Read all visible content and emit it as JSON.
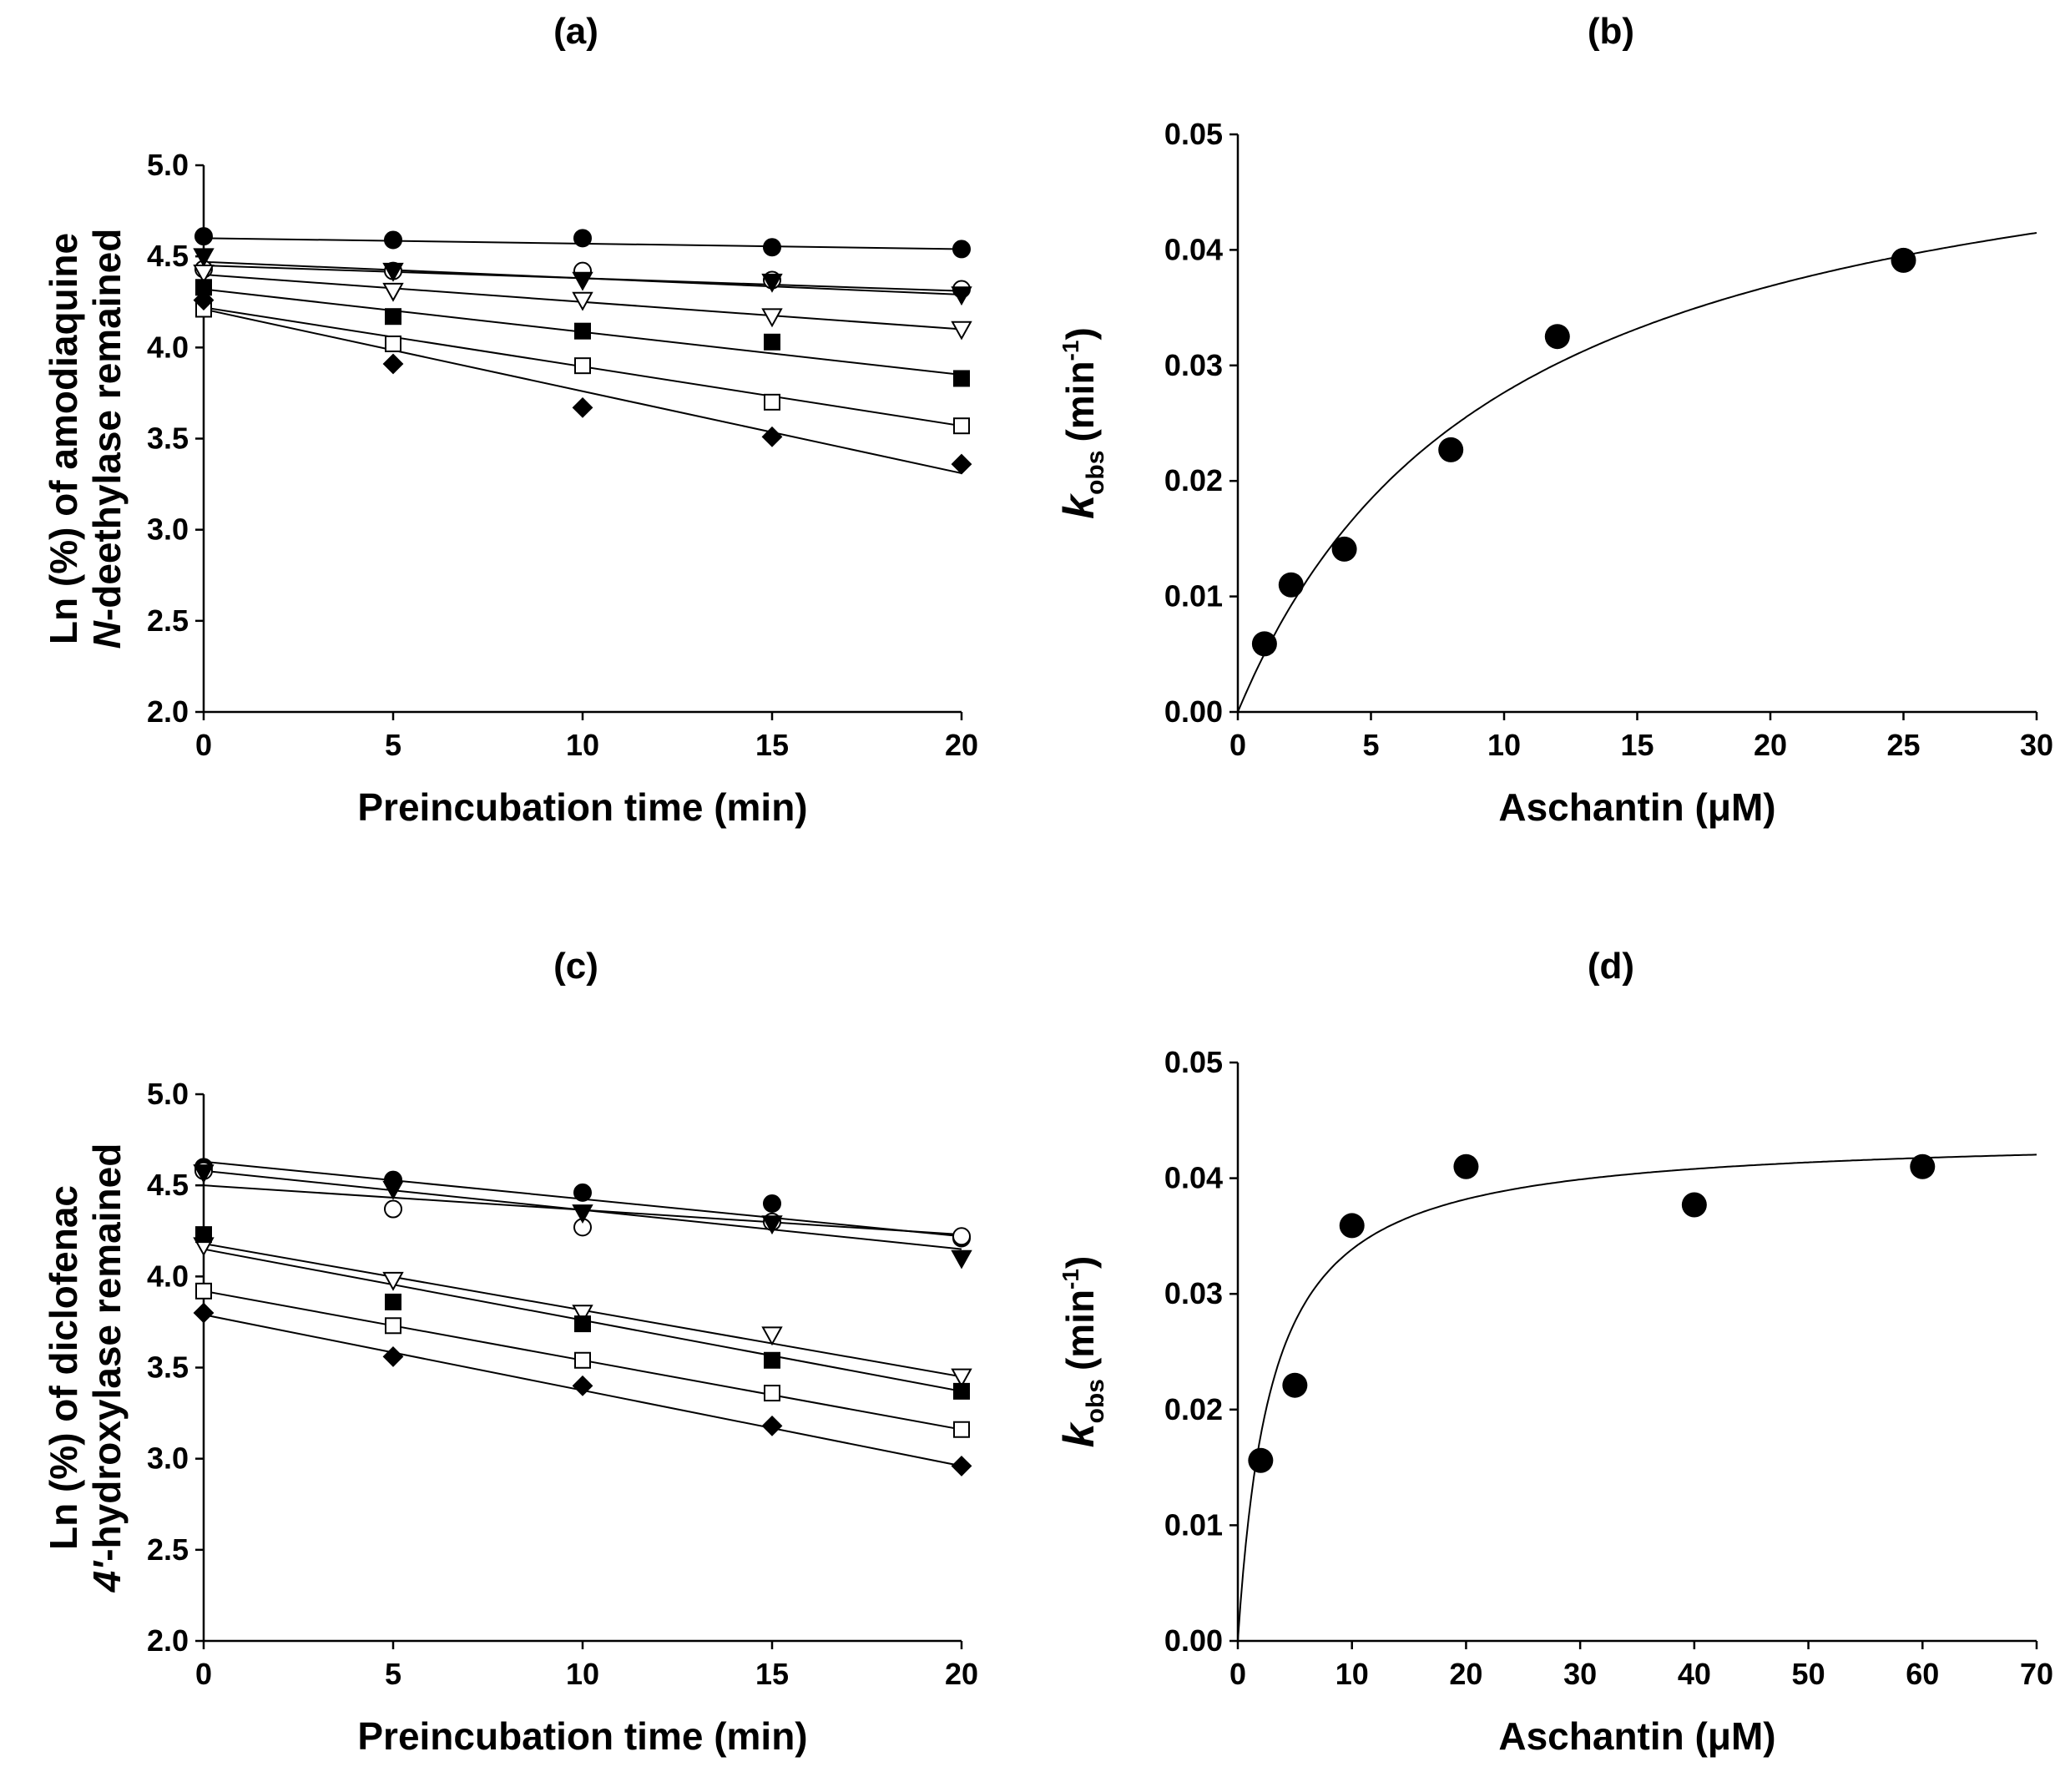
{
  "chart_data": [
    {
      "panel": "(a)",
      "type": "scatter",
      "title": "(a)",
      "xlabel": "Preincubation time (min)",
      "ylabel_lines": [
        "Ln (%) of amodiaquine",
        "N-deethylase remained"
      ],
      "xlim": [
        0,
        20
      ],
      "ylim": [
        2.0,
        5.0
      ],
      "xticks": [
        0,
        5,
        10,
        15,
        20
      ],
      "yticks": [
        2.0,
        2.5,
        3.0,
        3.5,
        4.0,
        4.5,
        5.0
      ],
      "ytick_labels": [
        "2.0",
        "2.5",
        "3.0",
        "3.5",
        "4.0",
        "4.5",
        "5.0"
      ],
      "grid": false,
      "x": [
        0,
        5,
        10,
        15,
        20
      ],
      "series": [
        {
          "marker": "filled-circle",
          "values": [
            4.61,
            4.59,
            4.6,
            4.55,
            4.54
          ],
          "fit": [
            4.6,
            4.54
          ]
        },
        {
          "marker": "open-circle",
          "values": [
            4.43,
            4.42,
            4.42,
            4.37,
            4.32
          ],
          "fit": [
            4.45,
            4.31
          ]
        },
        {
          "marker": "filled-triangle-down",
          "values": [
            4.5,
            4.42,
            4.37,
            4.36,
            4.29
          ],
          "fit": [
            4.47,
            4.29
          ]
        },
        {
          "marker": "open-triangle-down",
          "values": [
            4.41,
            4.31,
            4.26,
            4.17,
            4.1
          ],
          "fit": [
            4.4,
            4.1
          ]
        },
        {
          "marker": "filled-square",
          "values": [
            4.33,
            4.17,
            4.09,
            4.03,
            3.83
          ],
          "fit": [
            4.32,
            3.85
          ]
        },
        {
          "marker": "open-square",
          "values": [
            4.21,
            4.02,
            3.9,
            3.7,
            3.57
          ],
          "fit": [
            4.22,
            3.57
          ]
        },
        {
          "marker": "filled-diamond",
          "values": [
            4.26,
            3.91,
            3.67,
            3.51,
            3.36
          ],
          "fit": [
            4.21,
            3.31
          ]
        }
      ]
    },
    {
      "panel": "(b)",
      "type": "scatter",
      "title": "(b)",
      "xlabel": "Aschantin (μM)",
      "ylabel": "kobs (min-1)",
      "ylabel_main": "k",
      "ylabel_sub": "obs",
      "ylabel_unit": "(min",
      "ylabel_sup": "-1",
      "ylabel_close": ")",
      "xlim": [
        0,
        30
      ],
      "ylim": [
        0.0,
        0.05
      ],
      "xticks": [
        0,
        5,
        10,
        15,
        20,
        25,
        30
      ],
      "yticks": [
        0.0,
        0.01,
        0.02,
        0.03,
        0.04,
        0.05
      ],
      "ytick_labels": [
        "0.00",
        "0.01",
        "0.02",
        "0.03",
        "0.04",
        "0.05"
      ],
      "grid": false,
      "points": {
        "x": [
          1,
          2,
          4,
          8,
          12,
          25
        ],
        "y": [
          0.0059,
          0.011,
          0.0141,
          0.0227,
          0.0325,
          0.0391
        ]
      },
      "fit_curve": {
        "model": "kinact*I/(KI+I)",
        "kinact": 0.0553,
        "KI": 10.0
      }
    },
    {
      "panel": "(c)",
      "type": "scatter",
      "title": "(c)",
      "xlabel": "Preincubation time (min)",
      "ylabel_lines": [
        "Ln (%) of diclofenac",
        "4'-hydroxylase remained"
      ],
      "xlim": [
        0,
        20
      ],
      "ylim": [
        2.0,
        5.0
      ],
      "xticks": [
        0,
        5,
        10,
        15,
        20
      ],
      "yticks": [
        2.0,
        2.5,
        3.0,
        3.5,
        4.0,
        4.5,
        5.0
      ],
      "ytick_labels": [
        "2.0",
        "2.5",
        "3.0",
        "3.5",
        "4.0",
        "4.5",
        "5.0"
      ],
      "grid": false,
      "x": [
        0,
        5,
        10,
        15,
        20
      ],
      "series": [
        {
          "marker": "filled-circle",
          "values": [
            4.6,
            4.53,
            4.46,
            4.4,
            4.21
          ],
          "fit": [
            4.63,
            4.22
          ]
        },
        {
          "marker": "open-circle",
          "values": [
            4.58,
            4.37,
            4.27,
            4.3,
            4.22
          ],
          "fit": [
            4.5,
            4.23
          ]
        },
        {
          "marker": "filled-triangle-down",
          "values": [
            4.57,
            4.48,
            4.35,
            4.29,
            4.1
          ],
          "fit": [
            4.58,
            4.15
          ]
        },
        {
          "marker": "open-triangle-down",
          "values": [
            4.17,
            3.98,
            3.8,
            3.68,
            3.45
          ],
          "fit": [
            4.18,
            3.45
          ]
        },
        {
          "marker": "filled-square",
          "values": [
            4.23,
            3.86,
            3.74,
            3.54,
            3.37
          ],
          "fit": [
            4.15,
            3.37
          ]
        },
        {
          "marker": "open-square",
          "values": [
            3.92,
            3.73,
            3.54,
            3.36,
            3.16
          ],
          "fit": [
            3.92,
            3.16
          ]
        },
        {
          "marker": "filled-diamond",
          "values": [
            3.8,
            3.56,
            3.4,
            3.18,
            2.96
          ],
          "fit": [
            3.79,
            2.96
          ]
        }
      ]
    },
    {
      "panel": "(d)",
      "type": "scatter",
      "title": "(d)",
      "xlabel": "Aschantin (μM)",
      "ylabel": "kobs (min-1)",
      "ylabel_main": "k",
      "ylabel_sub": "obs",
      "ylabel_unit": "(min",
      "ylabel_sup": "-1",
      "ylabel_close": ")",
      "xlim": [
        0,
        70
      ],
      "ylim": [
        0.0,
        0.05
      ],
      "xticks": [
        0,
        10,
        20,
        30,
        40,
        50,
        60,
        70
      ],
      "yticks": [
        0.0,
        0.01,
        0.02,
        0.03,
        0.04,
        0.05
      ],
      "ytick_labels": [
        "0.00",
        "0.01",
        "0.02",
        "0.03",
        "0.04",
        "0.05"
      ],
      "grid": false,
      "points": {
        "x": [
          2,
          5,
          10,
          20,
          40,
          60
        ],
        "y": [
          0.0156,
          0.0221,
          0.0359,
          0.041,
          0.0377,
          0.041
        ]
      },
      "fit_curve": {
        "model": "kinact*I/(KI+I)",
        "kinact": 0.0438,
        "KI": 2.94
      }
    }
  ]
}
